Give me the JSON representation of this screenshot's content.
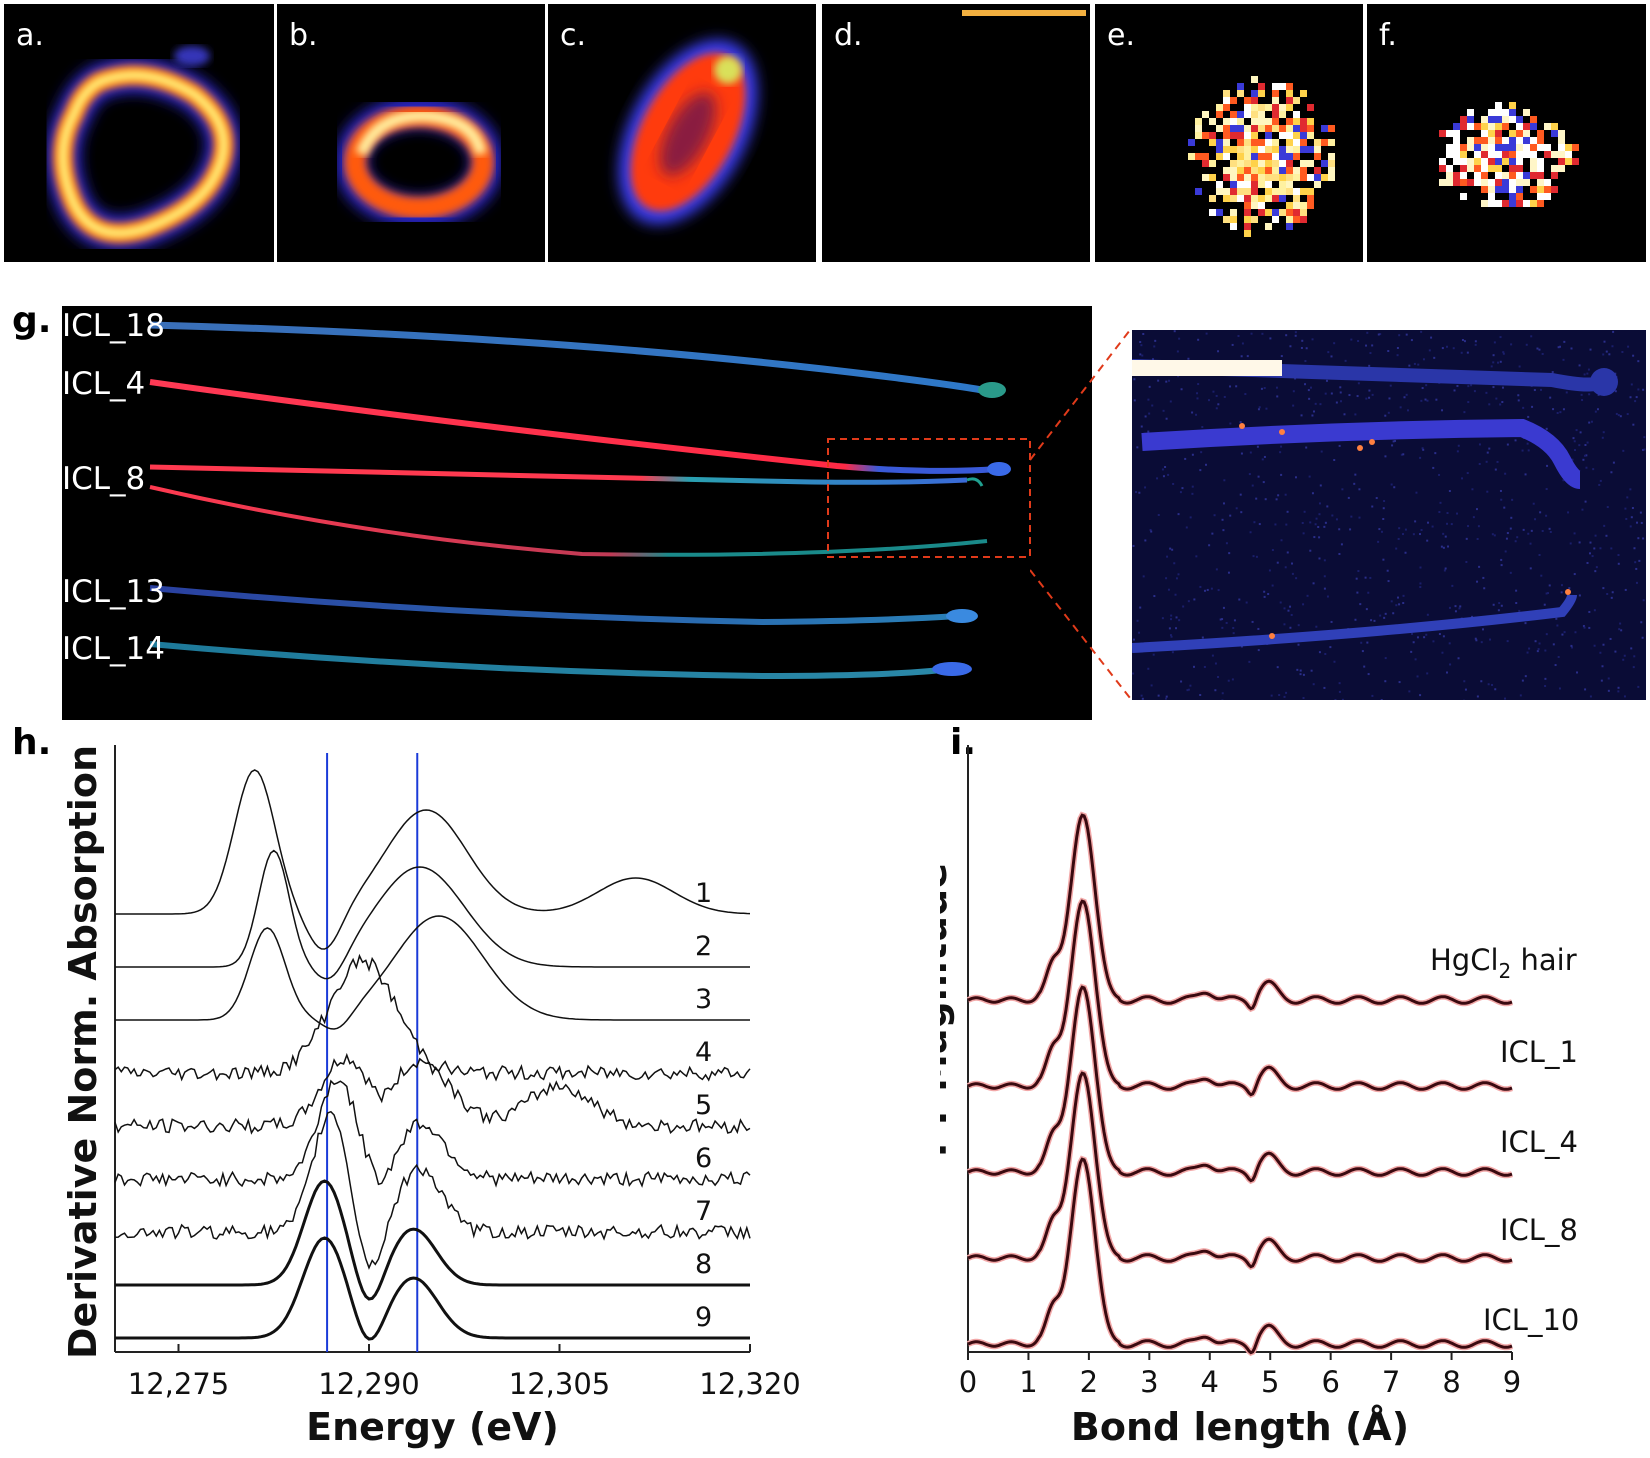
{
  "tiles": {
    "a": "a.",
    "b": "b.",
    "c": "c.",
    "d": "d.",
    "e": "e.",
    "f": "f."
  },
  "panel_g": {
    "letter": "g.",
    "labels": [
      "ICL_18",
      "ICL_4",
      "ICL_8",
      "ICL_13",
      "ICL_14"
    ]
  },
  "panel_h": {
    "letter": "h.",
    "curve_labels": [
      "1",
      "2",
      "3",
      "4",
      "5",
      "6",
      "7",
      "8",
      "9"
    ]
  },
  "panel_i": {
    "letter": "i.",
    "curve_labels": {
      "hgcl2_prefix": "HgCl",
      "hgcl2_sub": "2",
      "hgcl2_suffix": " hair",
      "icl1": "ICL_1",
      "icl4": "ICL_4",
      "icl8": "ICL_8",
      "icl10": "ICL_10"
    }
  },
  "chart_data": [
    {
      "type": "line",
      "panel": "h",
      "title": "",
      "xlabel": "Energy (eV)",
      "ylabel": "Derivative Norm. Absorption",
      "xlim": [
        12270,
        12320
      ],
      "xticks": [
        "12,275",
        "12,290",
        "12,305",
        "12,320"
      ],
      "xtick_values": [
        12275,
        12290,
        12305,
        12320
      ],
      "reference_lines_eV": [
        12286.7,
        12293.8
      ],
      "series": [
        {
          "name": "1",
          "offset": 8,
          "peaks": [
            [
              12281.0,
              3.6,
              1.6
            ],
            [
              12294.5,
              2.6,
              3.2
            ],
            [
              12311.0,
              0.9,
              3.0
            ]
          ],
          "dips": [
            [
              12286.5,
              1.0,
              1.3
            ]
          ]
        },
        {
          "name": "2",
          "offset": 7,
          "peaks": [
            [
              12282.5,
              2.9,
              1.2
            ],
            [
              12294.0,
              2.5,
              3.5
            ]
          ],
          "dips": [
            [
              12287.0,
              0.6,
              1.2
            ]
          ]
        },
        {
          "name": "3",
          "offset": 6,
          "peaks": [
            [
              12282.0,
              2.3,
              1.4
            ],
            [
              12295.5,
              2.6,
              3.5
            ]
          ],
          "dips": [
            [
              12287.5,
              0.4,
              1.1
            ]
          ]
        },
        {
          "name": "4",
          "offset": 5,
          "peaks": [
            [
              12289.5,
              2.8,
              2.6
            ]
          ],
          "dips": []
        },
        {
          "name": "5",
          "offset": 4,
          "peaks": [
            [
              12288.0,
              1.6,
              1.8
            ],
            [
              12294.0,
              1.6,
              2.5
            ],
            [
              12305.0,
              1.0,
              2.5
            ]
          ],
          "dips": [
            [
              12291.0,
              0.4,
              1.0
            ]
          ]
        },
        {
          "name": "6",
          "offset": 3,
          "peaks": [
            [
              12287.5,
              2.5,
              1.5
            ],
            [
              12294.0,
              1.4,
              2.0
            ]
          ],
          "dips": [
            [
              12291.0,
              0.6,
              1.0
            ]
          ]
        },
        {
          "name": "7",
          "offset": 2,
          "peaks": [
            [
              12287.0,
              3.0,
              1.4
            ],
            [
              12294.0,
              1.6,
              1.7
            ]
          ],
          "dips": [
            [
              12290.0,
              1.2,
              1.0
            ]
          ]
        },
        {
          "name": "8",
          "offset": 1,
          "peaks": [
            [
              12286.5,
              2.6,
              1.6
            ],
            [
              12293.5,
              1.4,
              1.8
            ]
          ],
          "dips": [
            [
              12290.0,
              0.8,
              1.0
            ]
          ]
        },
        {
          "name": "9",
          "offset": 0,
          "peaks": [
            [
              12286.5,
              2.5,
              1.7
            ],
            [
              12293.5,
              1.5,
              1.9
            ]
          ],
          "dips": [
            [
              12290.0,
              0.6,
              1.0
            ]
          ]
        }
      ]
    },
    {
      "type": "line",
      "panel": "i",
      "title": "",
      "xlabel": "Bond length (Å)",
      "ylabel": "FT Magnitude",
      "xlim": [
        0,
        9
      ],
      "xticks": [
        "0",
        "1",
        "2",
        "3",
        "4",
        "5",
        "6",
        "7",
        "8",
        "9"
      ],
      "xtick_values": [
        0,
        1,
        2,
        3,
        4,
        5,
        6,
        7,
        8,
        9
      ],
      "series": [
        {
          "name": "HgCl2 hair",
          "offset": 4,
          "main_peak": 1.9,
          "height": 1.0
        },
        {
          "name": "ICL_1",
          "offset": 3,
          "main_peak": 1.9,
          "height": 1.0
        },
        {
          "name": "ICL_4",
          "offset": 2,
          "main_peak": 1.9,
          "height": 1.0
        },
        {
          "name": "ICL_8",
          "offset": 1,
          "main_peak": 1.9,
          "height": 1.0
        },
        {
          "name": "ICL_10",
          "offset": 0,
          "main_peak": 1.9,
          "height": 1.0
        }
      ]
    }
  ]
}
